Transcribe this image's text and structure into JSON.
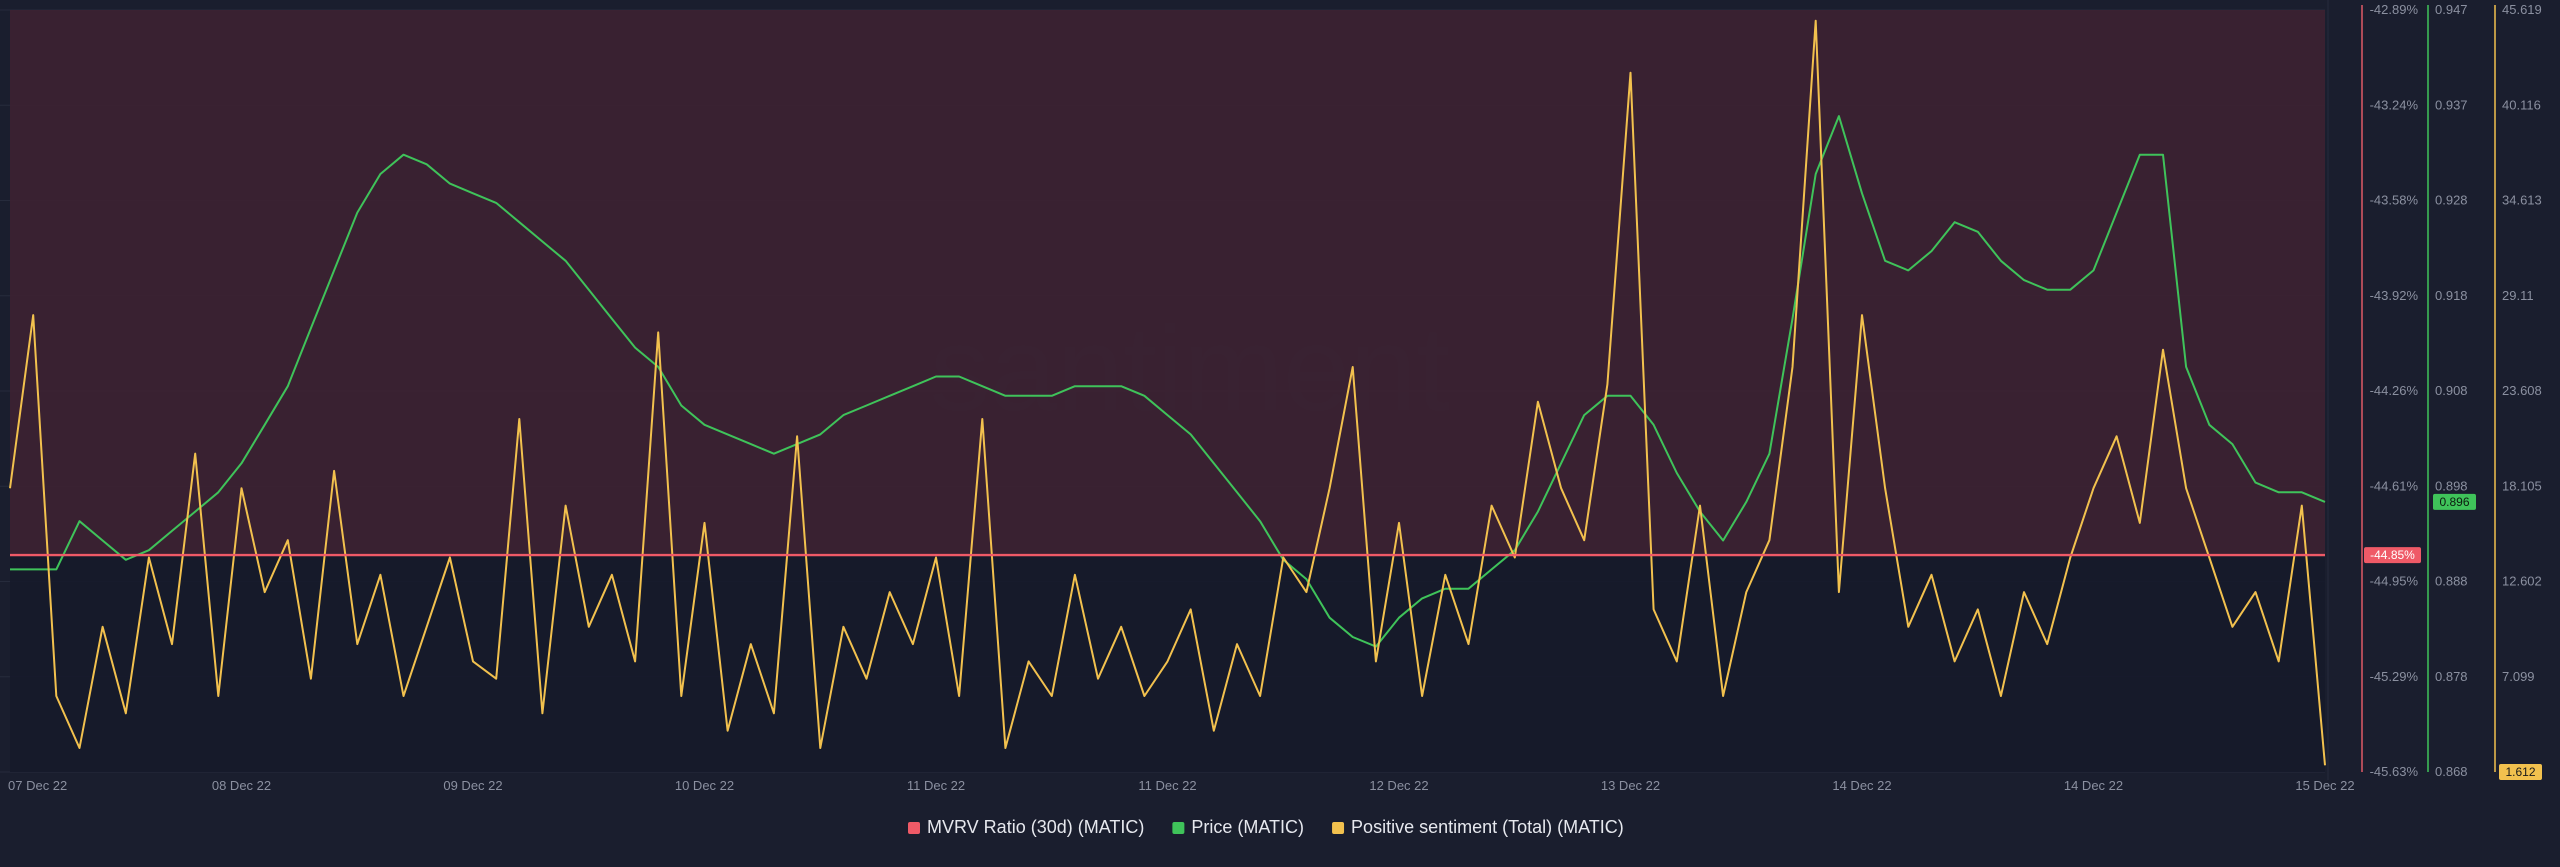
{
  "chart_data": {
    "type": "line",
    "watermark": "santiment",
    "x_ticks": [
      "07 Dec 22",
      "08 Dec 22",
      "09 Dec 22",
      "10 Dec 22",
      "11 Dec 22",
      "11 Dec 22",
      "12 Dec 22",
      "13 Dec 22",
      "14 Dec 22",
      "14 Dec 22",
      "15 Dec 22"
    ],
    "axes": {
      "mvrv": {
        "ticks": [
          "-42.89%",
          "-43.24%",
          "-43.58%",
          "-43.92%",
          "-44.26%",
          "-44.61%",
          "-44.95%",
          "-45.29%",
          "-45.63%"
        ],
        "range": [
          -45.63,
          -42.89
        ],
        "color": "#e05a66"
      },
      "price": {
        "ticks": [
          "0.947",
          "0.937",
          "0.928",
          "0.918",
          "0.908",
          "0.898",
          "0.888",
          "0.878",
          "0.868"
        ],
        "range": [
          0.868,
          0.947
        ],
        "color": "#3fc35a"
      },
      "sentiment": {
        "ticks": [
          "45.619",
          "40.116",
          "34.613",
          "29.11",
          "23.608",
          "18.105",
          "12.602",
          "7.099",
          "1.612"
        ],
        "range": [
          1.612,
          45.619
        ],
        "color": "#f2c14e"
      }
    },
    "current_values": {
      "mvrv": "-44.85%",
      "price": "0.896",
      "sentiment": "1.612"
    },
    "series": [
      {
        "name": "MVRV Ratio (30d) (MATIC)",
        "key": "mvrv",
        "color": "#ef5a67",
        "x": [
          0,
          0.16,
          0.16,
          0.29,
          0.29,
          0.42,
          0.42,
          0.55,
          0.55,
          0.68,
          0.68,
          0.81,
          0.81,
          0.94,
          0.94,
          1.07,
          1.07,
          1.2,
          1.2,
          1.33,
          1.33,
          1.47,
          1.47,
          1.6,
          1.6,
          1.73,
          1.73,
          1.86,
          1.86,
          2.0,
          2.0,
          2.13,
          2.13,
          2.26,
          2.26,
          2.39,
          2.39,
          2.52,
          2.52,
          2.65,
          2.65,
          2.78,
          2.78,
          2.92,
          2.92,
          3.05,
          3.05,
          3.18,
          3.18,
          3.31,
          3.31,
          3.44,
          3.44,
          3.57,
          3.57,
          3.7,
          3.7,
          3.84,
          3.84,
          3.97,
          3.97,
          4.1,
          4.1,
          4.23,
          4.23,
          4.36,
          4.36,
          4.49,
          4.49,
          4.62,
          4.62,
          4.76,
          4.76,
          4.89,
          4.89,
          5.02,
          5.02,
          5.15,
          5.15,
          5.28,
          5.28,
          5.41,
          5.41,
          5.54,
          5.54,
          5.68,
          5.68,
          5.81,
          5.81,
          5.94,
          5.94,
          6.07,
          6.07,
          6.2,
          6.2,
          6.33,
          6.33,
          6.46,
          6.46,
          6.6,
          6.6,
          6.73,
          6.73,
          6.86,
          6.86,
          6.99,
          6.99,
          7.12,
          7.12,
          7.25,
          7.25,
          7.38,
          7.38,
          7.52,
          7.52,
          7.65,
          7.65,
          7.78,
          7.78,
          7.91,
          7.91,
          8.04,
          8.04,
          8.17,
          8.17,
          8.3,
          8.3,
          8.44,
          8.44,
          8.57,
          8.57,
          8.7,
          8.7,
          8.83,
          8.83,
          8.96,
          8.96,
          9.09,
          9.09,
          9.22,
          9.22,
          9.36,
          9.36,
          9.49,
          9.49,
          9.62,
          9.62,
          9.75,
          9.75,
          9.88,
          9.88,
          10
        ],
        "values": [
          -44.85,
          -44.85,
          -44.85,
          -44.85,
          -44.85,
          -44.85,
          -44.85,
          -44.85,
          -44.85,
          -44.85,
          -44.85,
          -44.85,
          -44.85,
          -44.85,
          -44.85,
          -44.85,
          -44.85,
          -44.85,
          -44.85,
          -44.85,
          -44.85,
          -44.85,
          -44.85,
          -44.85,
          -44.85,
          -44.85,
          -44.85,
          -44.85,
          -44.85,
          -44.85,
          -44.85,
          -44.85,
          -44.85,
          -44.85,
          -44.85,
          -44.85,
          -44.85,
          -44.85,
          -44.85,
          -44.85,
          -44.85,
          -44.85,
          -44.85,
          -44.85,
          -44.85,
          -44.85,
          -44.85,
          -44.85,
          -44.85,
          -44.85,
          -44.85,
          -44.85,
          -44.85,
          -44.85,
          -44.85,
          -44.85,
          -44.85,
          -44.85,
          -44.85,
          -44.85,
          -44.85,
          -44.85,
          -44.85,
          -44.85,
          -44.85,
          -44.85,
          -44.85,
          -44.85,
          -44.85,
          -44.85,
          -44.85,
          -44.85,
          -44.85,
          -44.85,
          -44.85,
          -44.85,
          -44.85,
          -44.85,
          -44.85,
          -44.85,
          -44.85,
          -44.85,
          -44.85,
          -44.85,
          -44.85,
          -44.85,
          -44.85,
          -44.85,
          -44.85,
          -44.85,
          -44.85,
          -44.85,
          -44.85,
          -44.85,
          -44.85,
          -44.85,
          -44.85,
          -44.85,
          -44.85,
          -44.85,
          -44.85,
          -44.85,
          -44.85,
          -44.85,
          -44.85,
          -44.85,
          -44.85,
          -44.85,
          -44.85,
          -44.85,
          -44.85,
          -44.85,
          -44.85,
          -44.85,
          -44.85,
          -44.85,
          -44.85,
          -44.85,
          -44.85,
          -44.85,
          -44.85,
          -44.85,
          -44.85,
          -44.85,
          -44.85,
          -44.85,
          -44.85,
          -44.85,
          -44.85,
          -44.85,
          -44.85,
          -44.85,
          -44.85,
          -44.85,
          -44.85,
          -44.85,
          -44.85,
          -44.85,
          -44.85,
          -44.85,
          -44.85,
          -44.85,
          -44.85,
          -44.85,
          -44.85,
          -44.85,
          -44.85,
          -44.85,
          -44.85,
          -44.85,
          -44.85,
          -44.85
        ]
      },
      {
        "name": "Price (MATIC)",
        "key": "price",
        "color": "#3fc35a",
        "x": [
          0,
          0.1,
          0.2,
          0.3,
          0.4,
          0.5,
          0.6,
          0.7,
          0.8,
          0.9,
          1,
          1.1,
          1.2,
          1.3,
          1.4,
          1.5,
          1.6,
          1.7,
          1.8,
          1.9,
          2,
          2.1,
          2.2,
          2.3,
          2.4,
          2.5,
          2.6,
          2.7,
          2.8,
          2.9,
          3,
          3.1,
          3.2,
          3.3,
          3.4,
          3.5,
          3.6,
          3.7,
          3.8,
          3.9,
          4,
          4.1,
          4.2,
          4.3,
          4.4,
          4.5,
          4.6,
          4.7,
          4.8,
          4.9,
          5,
          5.1,
          5.2,
          5.3,
          5.4,
          5.5,
          5.6,
          5.7,
          5.8,
          5.9,
          6,
          6.1,
          6.2,
          6.3,
          6.4,
          6.5,
          6.6,
          6.7,
          6.8,
          6.9,
          7,
          7.1,
          7.2,
          7.3,
          7.4,
          7.5,
          7.6,
          7.7,
          7.8,
          7.9,
          8,
          8.1,
          8.2,
          8.3,
          8.4,
          8.5,
          8.6,
          8.7,
          8.8,
          8.9,
          9,
          9.1,
          9.2,
          9.3,
          9.4,
          9.5,
          9.6,
          9.7,
          9.8,
          9.9,
          10
        ],
        "values": [
          0.889,
          0.889,
          0.889,
          0.894,
          0.892,
          0.89,
          0.891,
          0.893,
          0.895,
          0.897,
          0.9,
          0.904,
          0.908,
          0.914,
          0.92,
          0.926,
          0.93,
          0.932,
          0.931,
          0.929,
          0.928,
          0.927,
          0.925,
          0.923,
          0.921,
          0.918,
          0.915,
          0.912,
          0.91,
          0.906,
          0.904,
          0.903,
          0.902,
          0.901,
          0.902,
          0.903,
          0.905,
          0.906,
          0.907,
          0.908,
          0.909,
          0.909,
          0.908,
          0.907,
          0.907,
          0.907,
          0.908,
          0.908,
          0.908,
          0.907,
          0.905,
          0.903,
          0.9,
          0.897,
          0.894,
          0.89,
          0.888,
          0.884,
          0.882,
          0.881,
          0.884,
          0.886,
          0.887,
          0.887,
          0.889,
          0.891,
          0.895,
          0.9,
          0.905,
          0.907,
          0.907,
          0.904,
          0.899,
          0.895,
          0.892,
          0.896,
          0.901,
          0.915,
          0.93,
          0.936,
          0.928,
          0.921,
          0.92,
          0.922,
          0.925,
          0.924,
          0.921,
          0.919,
          0.918,
          0.918,
          0.92,
          0.926,
          0.932,
          0.932,
          0.91,
          0.904,
          0.902,
          0.898,
          0.897,
          0.897,
          0.896
        ]
      },
      {
        "name": "Positive sentiment (Total) (MATIC)",
        "key": "sentiment",
        "color": "#f2c14e",
        "x": [
          0,
          0.1,
          0.2,
          0.3,
          0.4,
          0.5,
          0.6,
          0.7,
          0.8,
          0.9,
          1,
          1.1,
          1.2,
          1.3,
          1.4,
          1.5,
          1.6,
          1.7,
          1.8,
          1.9,
          2,
          2.1,
          2.2,
          2.3,
          2.4,
          2.5,
          2.6,
          2.7,
          2.8,
          2.9,
          3,
          3.1,
          3.2,
          3.3,
          3.4,
          3.5,
          3.6,
          3.7,
          3.8,
          3.9,
          4,
          4.1,
          4.2,
          4.3,
          4.4,
          4.5,
          4.6,
          4.7,
          4.8,
          4.9,
          5,
          5.1,
          5.2,
          5.3,
          5.4,
          5.5,
          5.6,
          5.7,
          5.8,
          5.9,
          6,
          6.1,
          6.2,
          6.3,
          6.4,
          6.5,
          6.6,
          6.7,
          6.8,
          6.9,
          7,
          7.1,
          7.2,
          7.3,
          7.4,
          7.5,
          7.6,
          7.7,
          7.8,
          7.9,
          8,
          8.1,
          8.2,
          8.3,
          8.4,
          8.5,
          8.6,
          8.7,
          8.8,
          8.9,
          9,
          9.1,
          9.2,
          9.3,
          9.4,
          9.5,
          9.6,
          9.7,
          9.8,
          9.9,
          10
        ],
        "values": [
          18,
          28,
          6,
          3,
          10,
          5,
          14,
          9,
          20,
          6,
          18,
          12,
          15,
          7,
          19,
          9,
          13,
          6,
          10,
          14,
          8,
          7,
          22,
          5,
          17,
          10,
          13,
          8,
          27,
          6,
          16,
          4,
          9,
          5,
          21,
          3,
          10,
          7,
          12,
          9,
          14,
          6,
          22,
          3,
          8,
          6,
          13,
          7,
          10,
          6,
          8,
          11,
          4,
          9,
          6,
          14,
          12,
          18,
          25,
          8,
          16,
          6,
          13,
          9,
          17,
          14,
          23,
          18,
          15,
          24,
          42,
          11,
          8,
          17,
          6,
          12,
          15,
          25,
          45,
          12,
          28,
          18,
          10,
          13,
          8,
          11,
          6,
          12,
          9,
          14,
          18,
          21,
          16,
          26,
          18,
          14,
          10,
          12,
          8,
          17,
          2
        ]
      }
    ]
  }
}
